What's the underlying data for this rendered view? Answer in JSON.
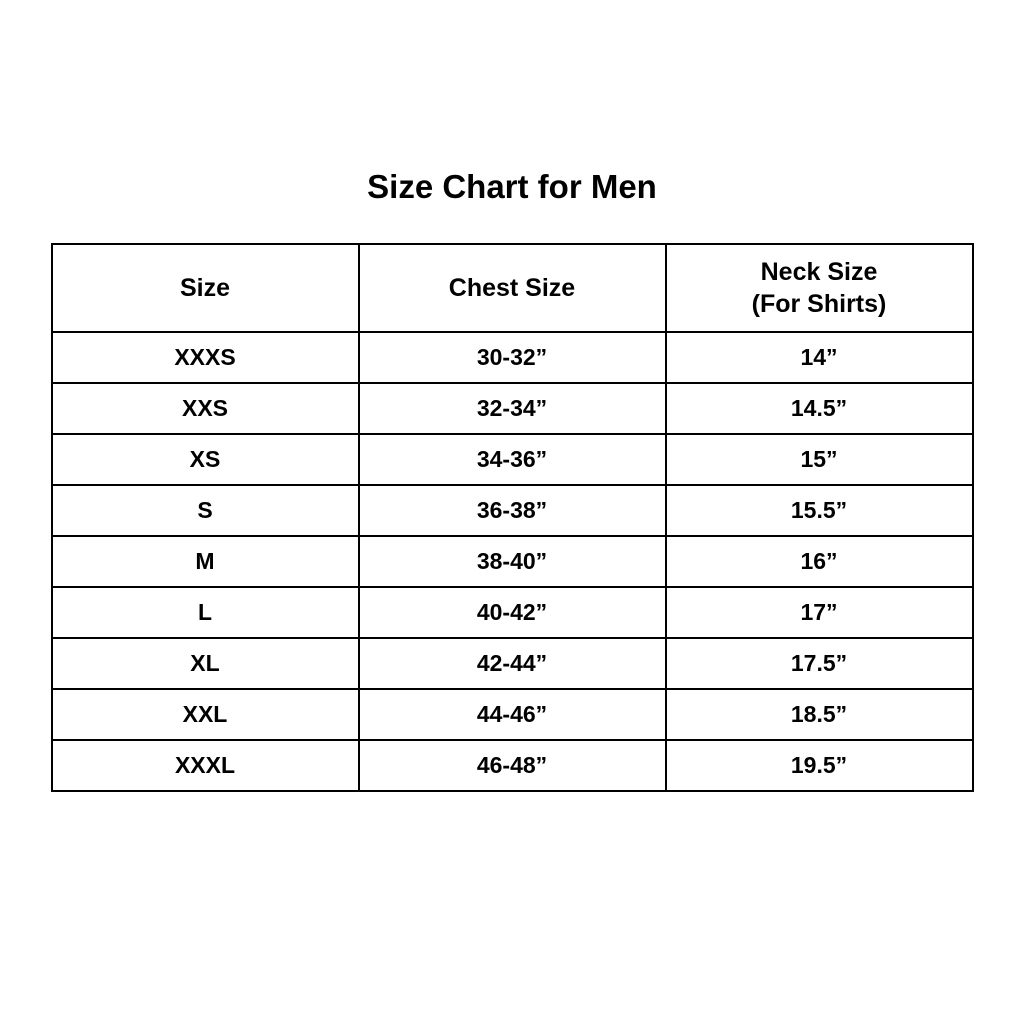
{
  "title": "Size Chart for Men",
  "colors": {
    "background": "#ffffff",
    "text": "#000000",
    "border": "#000000"
  },
  "chart_data": {
    "type": "table",
    "title": "Size Chart for Men",
    "columns": [
      "Size",
      "Chest Size",
      "Neck Size (For Shirts)"
    ],
    "header_lines": {
      "size": "Size",
      "chest": "Chest Size",
      "neck_line1": "Neck Size",
      "neck_line2": "(For Shirts)"
    },
    "rows": [
      {
        "size": "XXXS",
        "chest": "30-32”",
        "neck": "14”"
      },
      {
        "size": "XXS",
        "chest": "32-34”",
        "neck": "14.5”"
      },
      {
        "size": "XS",
        "chest": "34-36”",
        "neck": "15”"
      },
      {
        "size": "S",
        "chest": "36-38”",
        "neck": "15.5”"
      },
      {
        "size": "M",
        "chest": "38-40”",
        "neck": "16”"
      },
      {
        "size": "L",
        "chest": "40-42”",
        "neck": "17”"
      },
      {
        "size": "XL",
        "chest": "42-44”",
        "neck": "17.5”"
      },
      {
        "size": "XXL",
        "chest": "44-46”",
        "neck": "18.5”"
      },
      {
        "size": "XXXL",
        "chest": "46-48”",
        "neck": "19.5”"
      }
    ]
  }
}
